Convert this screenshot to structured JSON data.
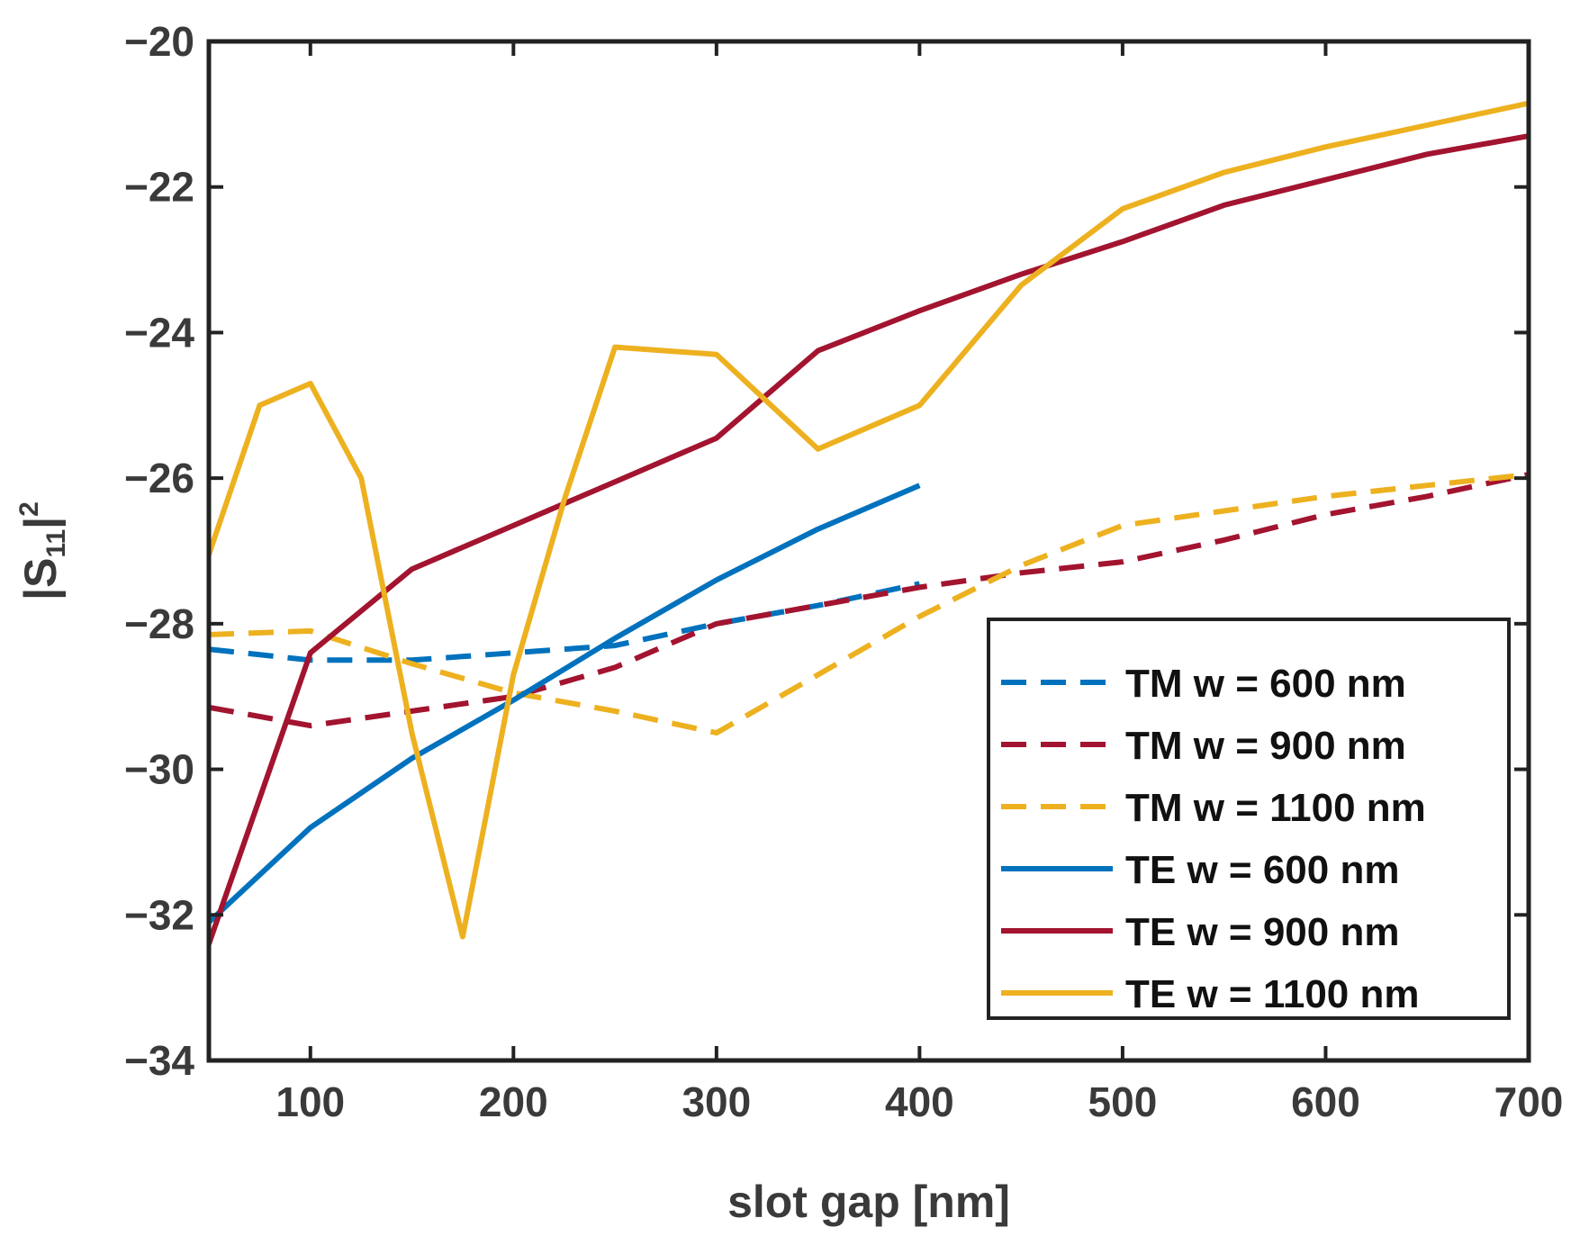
{
  "chart_data": {
    "type": "line",
    "title": "",
    "xlabel": "slot gap [nm]",
    "ylabel_main": "|S",
    "ylabel_sub": "11",
    "ylabel_end": "|",
    "ylabel_sup": "2",
    "xlim": [
      50,
      700
    ],
    "ylim": [
      -34,
      -20
    ],
    "xticks": [
      100,
      200,
      300,
      400,
      500,
      600,
      700
    ],
    "xtick_labels": [
      "100",
      "200",
      "300",
      "400",
      "500",
      "600",
      "700"
    ],
    "yticks": [
      -34,
      -32,
      -30,
      -28,
      -26,
      -24,
      -22,
      -20
    ],
    "ytick_labels": [
      "−34",
      "−32",
      "−30",
      "−28",
      "−26",
      "−24",
      "−22",
      "−20"
    ],
    "grid": false,
    "legend_position": "lower-right",
    "series": [
      {
        "name": "TM w = 600 nm",
        "color": "#0072BD",
        "style": "dashed",
        "x": [
          50,
          100,
          150,
          200,
          250,
          300,
          350,
          400
        ],
        "y": [
          -28.35,
          -28.5,
          -28.5,
          -28.4,
          -28.3,
          -28.0,
          -27.75,
          -27.45
        ]
      },
      {
        "name": "TM w = 900 nm",
        "color": "#A2142F",
        "style": "dashed",
        "x": [
          50,
          100,
          150,
          200,
          250,
          300,
          350,
          400,
          450,
          500,
          550,
          600,
          650,
          700
        ],
        "y": [
          -29.15,
          -29.4,
          -29.2,
          -29.0,
          -28.6,
          -28.0,
          -27.75,
          -27.5,
          -27.3,
          -27.15,
          -26.85,
          -26.5,
          -26.25,
          -25.95
        ]
      },
      {
        "name": "TM w = 1100 nm",
        "color": "#EDB120",
        "style": "dashed",
        "x": [
          50,
          100,
          150,
          200,
          250,
          300,
          350,
          400,
          450,
          500,
          550,
          600,
          650,
          700
        ],
        "y": [
          -28.15,
          -28.1,
          -28.55,
          -28.95,
          -29.2,
          -29.5,
          -28.7,
          -27.9,
          -27.2,
          -26.65,
          -26.45,
          -26.25,
          -26.1,
          -25.95
        ]
      },
      {
        "name": "TE w = 600 nm",
        "color": "#0072BD",
        "style": "solid",
        "x": [
          50,
          100,
          150,
          200,
          250,
          300,
          350,
          400
        ],
        "y": [
          -32.1,
          -30.8,
          -29.85,
          -29.05,
          -28.2,
          -27.4,
          -26.7,
          -26.1
        ]
      },
      {
        "name": "TE w = 900 nm",
        "color": "#A2142F",
        "style": "solid",
        "x": [
          50,
          100,
          150,
          200,
          250,
          300,
          350,
          400,
          450,
          500,
          550,
          600,
          650,
          700
        ],
        "y": [
          -32.4,
          -28.4,
          -27.25,
          -26.65,
          -26.05,
          -25.45,
          -24.25,
          -23.7,
          -23.2,
          -22.75,
          -22.25,
          -21.9,
          -21.55,
          -21.3
        ]
      },
      {
        "name": "TE w = 1100 nm",
        "color": "#EDB120",
        "style": "solid",
        "x": [
          50,
          75,
          100,
          125,
          150,
          175,
          200,
          225,
          250,
          300,
          350,
          400,
          450,
          500,
          550,
          600,
          650,
          700
        ],
        "y": [
          -27.05,
          -25.0,
          -24.7,
          -26.0,
          -29.5,
          -32.3,
          -28.7,
          -26.3,
          -24.2,
          -24.3,
          -25.6,
          -25.0,
          -23.35,
          -22.3,
          -21.8,
          -21.45,
          -21.15,
          -20.85
        ]
      }
    ]
  }
}
